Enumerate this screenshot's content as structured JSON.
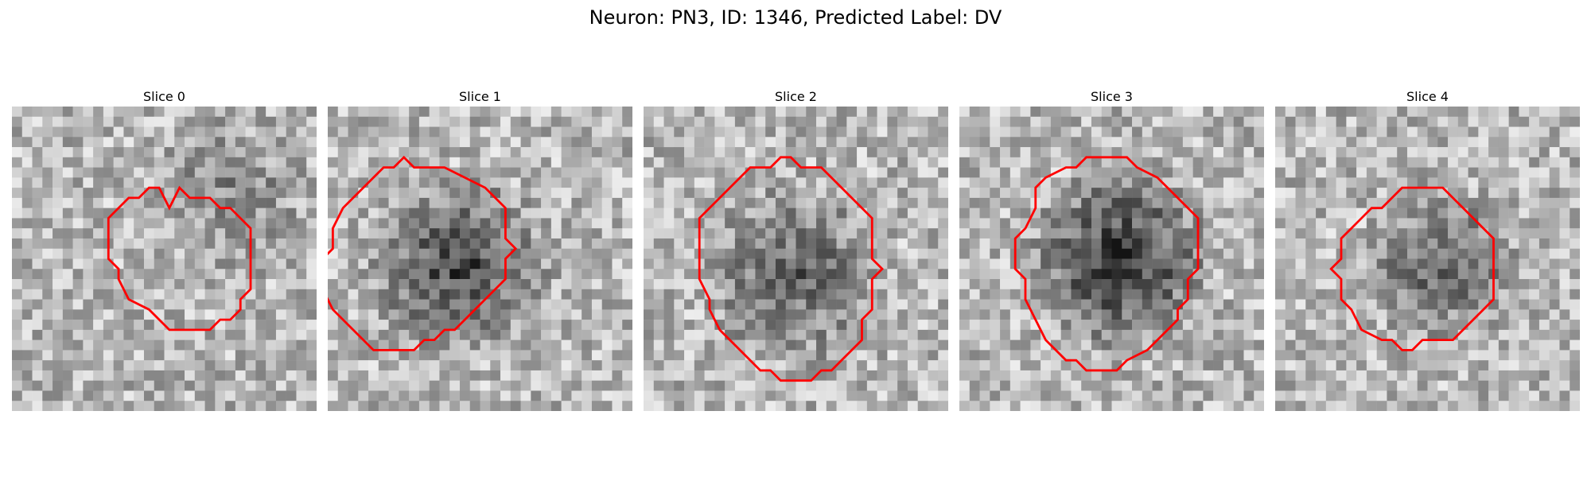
{
  "figure": {
    "title": "Neuron: PN3, ID: 1346, Predicted Label: DV"
  },
  "slices": [
    {
      "label": "Slice 0",
      "contour_color": "#ff0000",
      "dark_center": [
        0.72,
        0.3
      ],
      "darkness": 0.22,
      "contour": [
        [
          15.5,
          10
        ],
        [
          16.5,
          8
        ],
        [
          17.5,
          9
        ],
        [
          19.5,
          9
        ],
        [
          20.5,
          10
        ],
        [
          21.5,
          10
        ],
        [
          22.5,
          11
        ],
        [
          23.5,
          12
        ],
        [
          23.5,
          18
        ],
        [
          22.5,
          19
        ],
        [
          22.5,
          20
        ],
        [
          21.5,
          21
        ],
        [
          20.5,
          21
        ],
        [
          19.5,
          22
        ],
        [
          15.5,
          22
        ],
        [
          13.5,
          20
        ],
        [
          11.5,
          19
        ],
        [
          10.5,
          17
        ],
        [
          10.5,
          16
        ],
        [
          9.5,
          15
        ],
        [
          9.5,
          11
        ],
        [
          11.5,
          9
        ],
        [
          12.5,
          9
        ],
        [
          13.5,
          8
        ],
        [
          14.5,
          8
        ]
      ]
    },
    {
      "label": "Slice 1",
      "contour_color": "#ff0000",
      "dark_center": [
        0.43,
        0.52
      ],
      "darkness": 0.55,
      "contour": [
        [
          8.5,
          6
        ],
        [
          11.5,
          6
        ],
        [
          13.5,
          7
        ],
        [
          15.5,
          8
        ],
        [
          17.5,
          10
        ],
        [
          17.5,
          13
        ],
        [
          18.5,
          14
        ],
        [
          17.5,
          15
        ],
        [
          17.5,
          17
        ],
        [
          15.5,
          19
        ],
        [
          13.5,
          21
        ],
        [
          12.5,
          22
        ],
        [
          11.5,
          22
        ],
        [
          10.5,
          23
        ],
        [
          9.5,
          23
        ],
        [
          8.5,
          24
        ],
        [
          4.5,
          24
        ],
        [
          2.5,
          22
        ],
        [
          0.5,
          20
        ],
        [
          -0.5,
          18
        ],
        [
          -0.5,
          15
        ],
        [
          0.5,
          14
        ],
        [
          0.5,
          12
        ],
        [
          1.5,
          10
        ],
        [
          2.5,
          9
        ],
        [
          3.5,
          8
        ],
        [
          4.5,
          7
        ],
        [
          5.5,
          6
        ],
        [
          6.5,
          6
        ],
        [
          7.5,
          5
        ]
      ]
    },
    {
      "label": "Slice 2",
      "contour_color": "#ff0000",
      "dark_center": [
        0.5,
        0.55
      ],
      "darkness": 0.4,
      "contour": [
        [
          13.5,
          5
        ],
        [
          14.5,
          5
        ],
        [
          15.5,
          6
        ],
        [
          17.5,
          6
        ],
        [
          19.5,
          8
        ],
        [
          22.5,
          11
        ],
        [
          22.5,
          15
        ],
        [
          23.5,
          16
        ],
        [
          22.5,
          17
        ],
        [
          22.5,
          20
        ],
        [
          21.5,
          21
        ],
        [
          21.5,
          23
        ],
        [
          20.5,
          24
        ],
        [
          19.5,
          25
        ],
        [
          18.5,
          26
        ],
        [
          17.5,
          26
        ],
        [
          16.5,
          27
        ],
        [
          13.5,
          27
        ],
        [
          12.5,
          26
        ],
        [
          11.5,
          26
        ],
        [
          9.5,
          24
        ],
        [
          7.5,
          22
        ],
        [
          6.5,
          20
        ],
        [
          6.5,
          19
        ],
        [
          5.5,
          17
        ],
        [
          5.5,
          11
        ],
        [
          6.5,
          10
        ],
        [
          7.5,
          9
        ],
        [
          8.5,
          8
        ],
        [
          9.5,
          7
        ],
        [
          10.5,
          6
        ],
        [
          12.5,
          6
        ]
      ]
    },
    {
      "label": "Slice 3",
      "contour_color": "#ff0000",
      "dark_center": [
        0.53,
        0.5
      ],
      "darkness": 0.65,
      "contour": [
        [
          12.5,
          5
        ],
        [
          16.5,
          5
        ],
        [
          17.5,
          6
        ],
        [
          19.5,
          7
        ],
        [
          21.5,
          9
        ],
        [
          22.5,
          10
        ],
        [
          23.5,
          11
        ],
        [
          23.5,
          16
        ],
        [
          22.5,
          17
        ],
        [
          22.5,
          19
        ],
        [
          21.5,
          20
        ],
        [
          21.5,
          21
        ],
        [
          20.5,
          22
        ],
        [
          19.5,
          23
        ],
        [
          18.5,
          24
        ],
        [
          16.5,
          25
        ],
        [
          15.5,
          26
        ],
        [
          12.5,
          26
        ],
        [
          11.5,
          25
        ],
        [
          10.5,
          25
        ],
        [
          8.5,
          23
        ],
        [
          7.5,
          21
        ],
        [
          6.5,
          19
        ],
        [
          6.5,
          17
        ],
        [
          5.5,
          16
        ],
        [
          5.5,
          13
        ],
        [
          6.5,
          12
        ],
        [
          7.5,
          10
        ],
        [
          7.5,
          8
        ],
        [
          8.5,
          7
        ],
        [
          10.5,
          6
        ],
        [
          11.5,
          6
        ]
      ]
    },
    {
      "label": "Slice 4",
      "contour_color": "#ff0000",
      "dark_center": [
        0.55,
        0.52
      ],
      "darkness": 0.4,
      "contour": [
        [
          12.5,
          8
        ],
        [
          16.5,
          8
        ],
        [
          18.5,
          10
        ],
        [
          20.5,
          12
        ],
        [
          21.5,
          13
        ],
        [
          21.5,
          19
        ],
        [
          20.5,
          20
        ],
        [
          19.5,
          21
        ],
        [
          18.5,
          22
        ],
        [
          17.5,
          23
        ],
        [
          14.5,
          23
        ],
        [
          13.5,
          24
        ],
        [
          12.5,
          24
        ],
        [
          11.5,
          23
        ],
        [
          10.5,
          23
        ],
        [
          8.5,
          22
        ],
        [
          7.5,
          20
        ],
        [
          6.5,
          19
        ],
        [
          6.5,
          17
        ],
        [
          5.5,
          16
        ],
        [
          6.5,
          15
        ],
        [
          6.5,
          13
        ],
        [
          7.5,
          12
        ],
        [
          8.5,
          11
        ],
        [
          9.5,
          10
        ],
        [
          10.5,
          10
        ]
      ]
    }
  ]
}
